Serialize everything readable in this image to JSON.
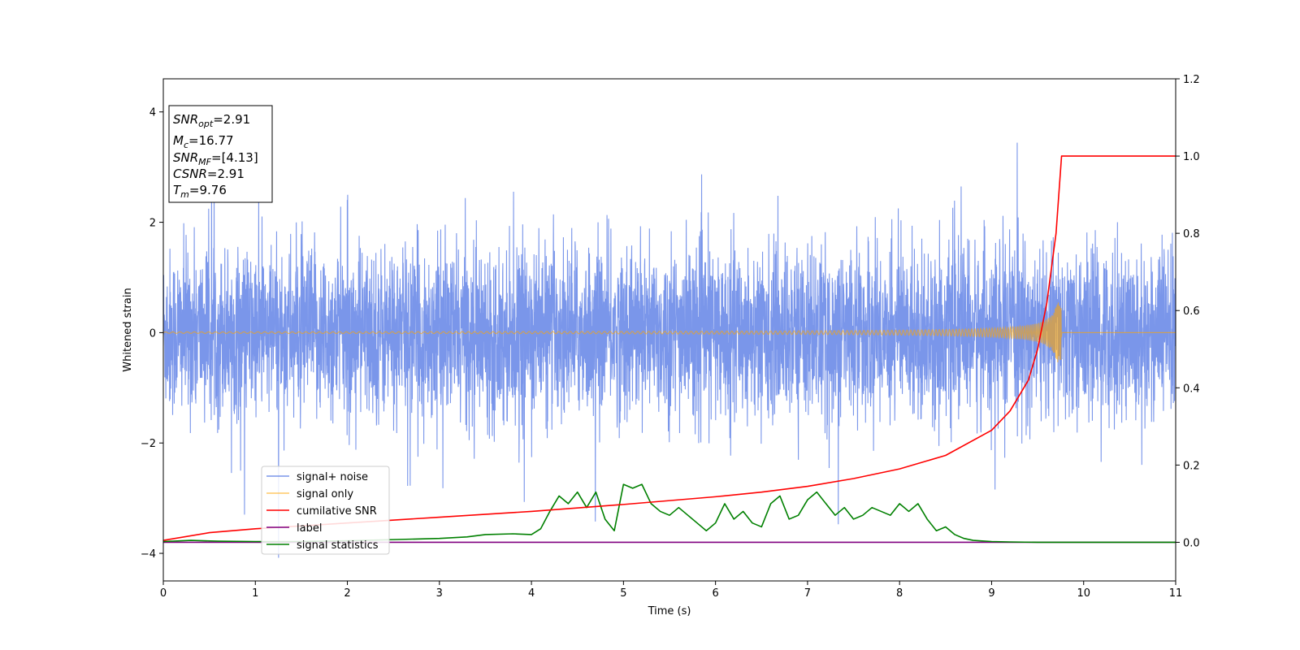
{
  "chart_data": {
    "type": "line",
    "xlabel": "Time (s)",
    "ylabel": "Whitened strain",
    "xlim": [
      0,
      11
    ],
    "ylim": [
      -4.5,
      4.6
    ],
    "y2lim": [
      -0.1,
      1.2
    ],
    "x_ticks": [
      "0",
      "1",
      "2",
      "3",
      "4",
      "5",
      "6",
      "7",
      "8",
      "9",
      "10",
      "11"
    ],
    "y_ticks": [
      "−4",
      "−2",
      "0",
      "2",
      "4"
    ],
    "y2_ticks": [
      "0.0",
      "0.2",
      "0.4",
      "0.6",
      "0.8",
      "1.0",
      "1.2"
    ],
    "grid": false,
    "legend_position": "lower-left",
    "annotation": {
      "snr_opt": {
        "label": "SNR",
        "sub": "opt",
        "value": "=2.91"
      },
      "mc": {
        "label": "M",
        "sub": "c",
        "value": "=16.77"
      },
      "snr_mf": {
        "label": "SNR",
        "sub": "MF",
        "value": "=[4.13]"
      },
      "csnr": {
        "label": "CSNR",
        "value": "=2.91"
      },
      "tm": {
        "label": "T",
        "sub": "m",
        "value": "=9.76"
      }
    },
    "series": [
      {
        "name": "signal+ noise",
        "color": "#4169E1",
        "axis": "left",
        "description_values": {
          "merger_time": 9.76,
          "approx_std": 0.75
        }
      },
      {
        "name": "signal only",
        "color": "#FFA500",
        "axis": "left",
        "peak_amplitude": 0.55,
        "merger_time": 9.76
      },
      {
        "name": "cumilative SNR",
        "color": "#FF0000",
        "axis": "right",
        "x": [
          0,
          0.5,
          1,
          2,
          3,
          4,
          5,
          6,
          6.5,
          7,
          7.5,
          8,
          8.5,
          9,
          9.2,
          9.4,
          9.5,
          9.6,
          9.7,
          9.76,
          11
        ],
        "values": [
          0.005,
          0.025,
          0.035,
          0.05,
          0.065,
          0.08,
          0.098,
          0.118,
          0.13,
          0.145,
          0.165,
          0.19,
          0.225,
          0.29,
          0.34,
          0.42,
          0.5,
          0.62,
          0.8,
          1.0,
          1.0
        ]
      },
      {
        "name": "label",
        "color": "#800080",
        "axis": "right",
        "x": [
          0,
          11
        ],
        "values": [
          0,
          0
        ]
      },
      {
        "name": "signal statistics",
        "color": "#008000",
        "axis": "right",
        "x": [
          0,
          0.3,
          0.6,
          1.0,
          1.5,
          2.0,
          2.5,
          3.0,
          3.3,
          3.5,
          3.8,
          4.0,
          4.1,
          4.2,
          4.3,
          4.4,
          4.5,
          4.6,
          4.7,
          4.8,
          4.9,
          4.95,
          5.0,
          5.1,
          5.2,
          5.3,
          5.4,
          5.5,
          5.6,
          5.7,
          5.8,
          5.9,
          6.0,
          6.1,
          6.2,
          6.3,
          6.4,
          6.5,
          6.6,
          6.7,
          6.8,
          6.9,
          7.0,
          7.1,
          7.2,
          7.3,
          7.4,
          7.5,
          7.6,
          7.7,
          7.8,
          7.9,
          8.0,
          8.1,
          8.2,
          8.3,
          8.4,
          8.5,
          8.6,
          8.7,
          8.8,
          9.0,
          9.2,
          9.5,
          11
        ],
        "values": [
          0.002,
          0.005,
          0.003,
          0.002,
          0.002,
          0.004,
          0.007,
          0.01,
          0.014,
          0.02,
          0.022,
          0.02,
          0.035,
          0.08,
          0.12,
          0.1,
          0.13,
          0.09,
          0.13,
          0.06,
          0.03,
          0.09,
          0.15,
          0.14,
          0.15,
          0.1,
          0.08,
          0.07,
          0.09,
          0.07,
          0.05,
          0.03,
          0.05,
          0.1,
          0.06,
          0.08,
          0.05,
          0.04,
          0.1,
          0.12,
          0.06,
          0.07,
          0.11,
          0.13,
          0.1,
          0.07,
          0.09,
          0.06,
          0.07,
          0.09,
          0.08,
          0.07,
          0.1,
          0.08,
          0.1,
          0.06,
          0.03,
          0.04,
          0.02,
          0.01,
          0.005,
          0.002,
          0.001,
          0,
          0
        ]
      }
    ]
  }
}
